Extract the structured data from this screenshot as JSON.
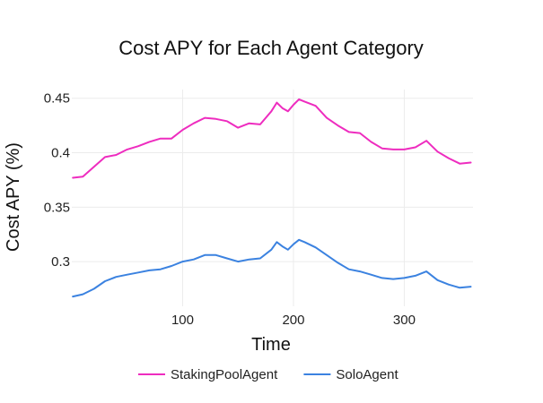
{
  "chart_data": {
    "type": "line",
    "title": "Cost APY for Each Agent Category",
    "xlabel": "Time",
    "ylabel": "Cost APY (%)",
    "xlim": [
      0,
      362
    ],
    "ylim": [
      0.259,
      0.458
    ],
    "xticks": [
      100,
      200,
      300
    ],
    "yticks": [
      0.3,
      0.35,
      0.4,
      0.45
    ],
    "grid": true,
    "legend_position": "bottom",
    "series": [
      {
        "name": "StakingPoolAgent",
        "color": "#ee2cbf",
        "x": [
          1,
          10,
          20,
          30,
          40,
          50,
          60,
          70,
          80,
          90,
          100,
          110,
          120,
          130,
          140,
          150,
          160,
          170,
          180,
          185,
          190,
          195,
          200,
          205,
          210,
          220,
          230,
          240,
          250,
          260,
          270,
          280,
          290,
          300,
          310,
          320,
          330,
          340,
          350,
          360
        ],
        "values": [
          0.377,
          0.378,
          0.387,
          0.396,
          0.398,
          0.403,
          0.406,
          0.41,
          0.413,
          0.413,
          0.421,
          0.427,
          0.432,
          0.431,
          0.429,
          0.423,
          0.427,
          0.426,
          0.438,
          0.446,
          0.441,
          0.438,
          0.444,
          0.449,
          0.447,
          0.443,
          0.432,
          0.425,
          0.419,
          0.418,
          0.41,
          0.404,
          0.403,
          0.403,
          0.405,
          0.411,
          0.401,
          0.395,
          0.39,
          0.391
        ]
      },
      {
        "name": "SoloAgent",
        "color": "#3b82e0",
        "x": [
          1,
          10,
          20,
          30,
          40,
          50,
          60,
          70,
          80,
          90,
          100,
          110,
          120,
          130,
          140,
          150,
          160,
          170,
          180,
          185,
          190,
          195,
          200,
          205,
          210,
          220,
          230,
          240,
          250,
          260,
          270,
          280,
          290,
          300,
          310,
          320,
          330,
          340,
          350,
          360
        ],
        "values": [
          0.268,
          0.27,
          0.275,
          0.282,
          0.286,
          0.288,
          0.29,
          0.292,
          0.293,
          0.296,
          0.3,
          0.302,
          0.306,
          0.306,
          0.303,
          0.3,
          0.302,
          0.303,
          0.311,
          0.318,
          0.314,
          0.311,
          0.316,
          0.32,
          0.318,
          0.313,
          0.306,
          0.299,
          0.293,
          0.291,
          0.288,
          0.285,
          0.284,
          0.285,
          0.287,
          0.291,
          0.283,
          0.279,
          0.276,
          0.277
        ]
      }
    ]
  }
}
